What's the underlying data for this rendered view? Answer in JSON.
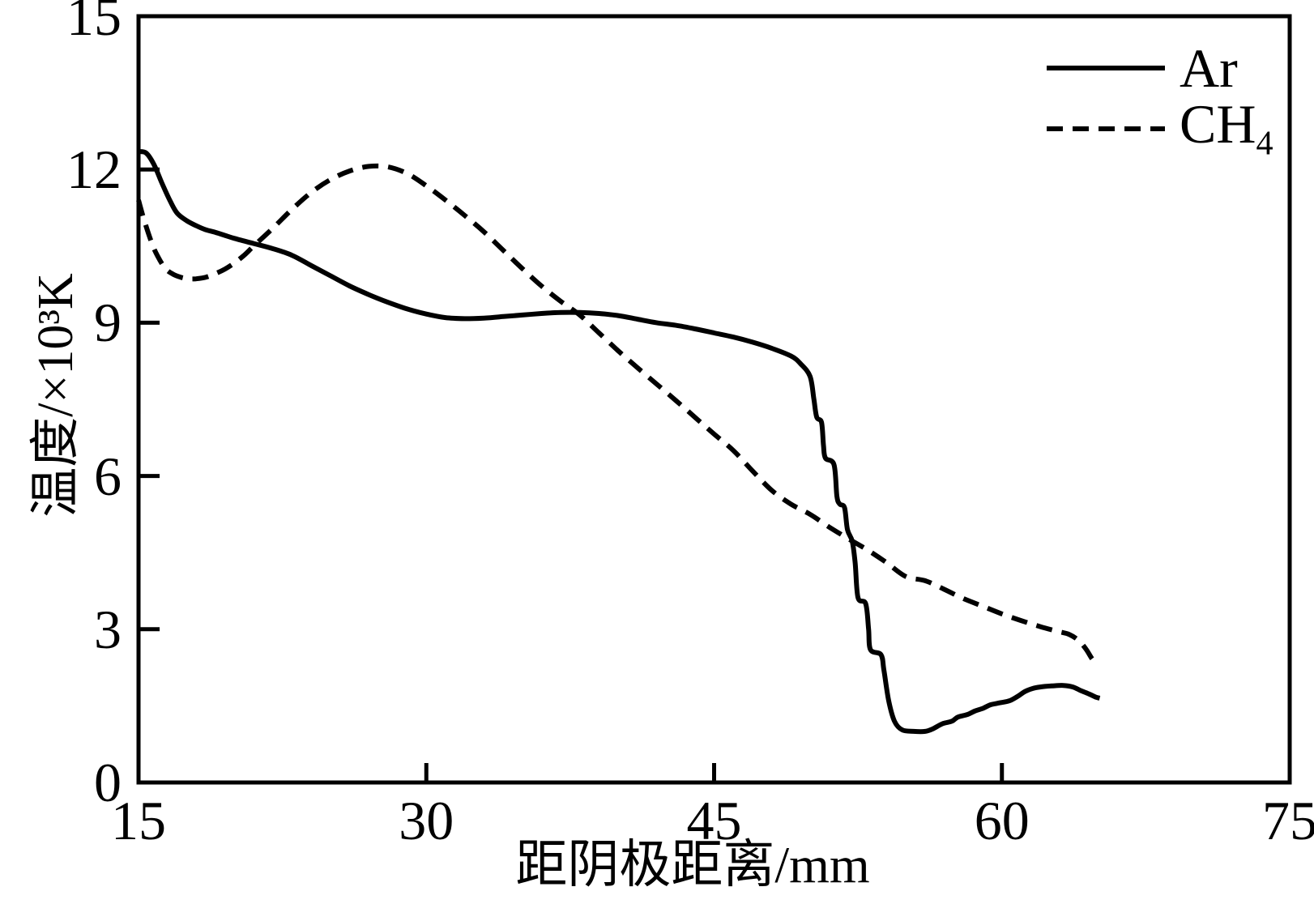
{
  "figure": {
    "background": "#ffffff",
    "line_color": "#000000"
  },
  "chart_data": {
    "type": "line",
    "title": "",
    "xlabel": "距阴极距离/mm",
    "ylabel": "温度/×10³K",
    "xlim": [
      15,
      75
    ],
    "ylim": [
      0,
      15
    ],
    "xticks": [
      15,
      30,
      45,
      60,
      75
    ],
    "yticks": [
      0,
      3,
      6,
      9,
      12,
      15
    ],
    "grid": false,
    "legend_position": "top-right",
    "series": [
      {
        "name": "Ar",
        "style": "solid",
        "color": "#000000",
        "points": [
          [
            15,
            12.35
          ],
          [
            15.4,
            12.32
          ],
          [
            15.8,
            12.1
          ],
          [
            16.2,
            11.75
          ],
          [
            16.6,
            11.42
          ],
          [
            17,
            11.15
          ],
          [
            17.5,
            11.0
          ],
          [
            18,
            10.9
          ],
          [
            18.5,
            10.82
          ],
          [
            19,
            10.77
          ],
          [
            19.5,
            10.71
          ],
          [
            20,
            10.65
          ],
          [
            21,
            10.55
          ],
          [
            22,
            10.45
          ],
          [
            23,
            10.32
          ],
          [
            24,
            10.12
          ],
          [
            25,
            9.92
          ],
          [
            26,
            9.72
          ],
          [
            27,
            9.55
          ],
          [
            28,
            9.4
          ],
          [
            29,
            9.27
          ],
          [
            30,
            9.17
          ],
          [
            31,
            9.1
          ],
          [
            32,
            9.08
          ],
          [
            33,
            9.09
          ],
          [
            34,
            9.12
          ],
          [
            35,
            9.15
          ],
          [
            36,
            9.18
          ],
          [
            37,
            9.2
          ],
          [
            38,
            9.2
          ],
          [
            39,
            9.18
          ],
          [
            40,
            9.14
          ],
          [
            41,
            9.07
          ],
          [
            42,
            9.0
          ],
          [
            43,
            8.95
          ],
          [
            44,
            8.88
          ],
          [
            45,
            8.8
          ],
          [
            46,
            8.72
          ],
          [
            47,
            8.62
          ],
          [
            48,
            8.5
          ],
          [
            49,
            8.35
          ],
          [
            49.5,
            8.2
          ],
          [
            50,
            7.95
          ],
          [
            50.2,
            7.5
          ],
          [
            50.35,
            7.15
          ],
          [
            50.6,
            7.05
          ],
          [
            50.7,
            6.6
          ],
          [
            50.8,
            6.35
          ],
          [
            51.25,
            6.22
          ],
          [
            51.4,
            5.6
          ],
          [
            51.55,
            5.45
          ],
          [
            51.8,
            5.38
          ],
          [
            51.95,
            4.95
          ],
          [
            52.2,
            4.72
          ],
          [
            52.35,
            4.3
          ],
          [
            52.5,
            3.62
          ],
          [
            52.9,
            3.5
          ],
          [
            53.05,
            3.0
          ],
          [
            53.15,
            2.6
          ],
          [
            53.7,
            2.5
          ],
          [
            53.85,
            2.2
          ],
          [
            54.1,
            1.6
          ],
          [
            54.4,
            1.2
          ],
          [
            54.8,
            1.03
          ],
          [
            55.4,
            1.0
          ],
          [
            56,
            1.0
          ],
          [
            56.4,
            1.05
          ],
          [
            56.9,
            1.15
          ],
          [
            57.4,
            1.2
          ],
          [
            57.7,
            1.28
          ],
          [
            58.2,
            1.33
          ],
          [
            58.6,
            1.4
          ],
          [
            59,
            1.45
          ],
          [
            59.4,
            1.52
          ],
          [
            59.9,
            1.56
          ],
          [
            60.4,
            1.6
          ],
          [
            60.8,
            1.68
          ],
          [
            61.2,
            1.78
          ],
          [
            61.6,
            1.84
          ],
          [
            62,
            1.87
          ],
          [
            62.6,
            1.89
          ],
          [
            63.2,
            1.9
          ],
          [
            63.7,
            1.87
          ],
          [
            64.1,
            1.8
          ],
          [
            64.5,
            1.74
          ],
          [
            64.9,
            1.67
          ],
          [
            65.1,
            1.65
          ]
        ]
      },
      {
        "name": "CH4",
        "style": "dashed",
        "color": "#000000",
        "points": [
          [
            15,
            11.4
          ],
          [
            15.3,
            11.0
          ],
          [
            15.7,
            10.55
          ],
          [
            16,
            10.3
          ],
          [
            16.4,
            10.06
          ],
          [
            16.8,
            9.95
          ],
          [
            17.2,
            9.89
          ],
          [
            17.6,
            9.86
          ],
          [
            18,
            9.86
          ],
          [
            18.5,
            9.89
          ],
          [
            19,
            9.96
          ],
          [
            19.5,
            10.05
          ],
          [
            20,
            10.17
          ],
          [
            20.5,
            10.32
          ],
          [
            21,
            10.5
          ],
          [
            22,
            10.85
          ],
          [
            23,
            11.22
          ],
          [
            24,
            11.55
          ],
          [
            25,
            11.8
          ],
          [
            26,
            11.97
          ],
          [
            27,
            12.06
          ],
          [
            28,
            12.05
          ],
          [
            29,
            11.92
          ],
          [
            30,
            11.68
          ],
          [
            31,
            11.4
          ],
          [
            32,
            11.1
          ],
          [
            33,
            10.78
          ],
          [
            34,
            10.42
          ],
          [
            35,
            10.06
          ],
          [
            36,
            9.72
          ],
          [
            37,
            9.42
          ],
          [
            38,
            9.15
          ],
          [
            39,
            8.8
          ],
          [
            40,
            8.45
          ],
          [
            41,
            8.12
          ],
          [
            42,
            7.8
          ],
          [
            43,
            7.48
          ],
          [
            44,
            7.15
          ],
          [
            45,
            6.82
          ],
          [
            46,
            6.5
          ],
          [
            47,
            6.1
          ],
          [
            48,
            5.72
          ],
          [
            49,
            5.45
          ],
          [
            50,
            5.25
          ],
          [
            51,
            5.0
          ],
          [
            52,
            4.77
          ],
          [
            53,
            4.55
          ],
          [
            54,
            4.3
          ],
          [
            55,
            4.03
          ],
          [
            56,
            3.95
          ],
          [
            57,
            3.78
          ],
          [
            58,
            3.6
          ],
          [
            59,
            3.45
          ],
          [
            60,
            3.3
          ],
          [
            61,
            3.17
          ],
          [
            62,
            3.05
          ],
          [
            63,
            2.95
          ],
          [
            63.5,
            2.9
          ],
          [
            64,
            2.78
          ],
          [
            64.4,
            2.6
          ],
          [
            64.7,
            2.42
          ],
          [
            65,
            2.3
          ]
        ]
      }
    ]
  },
  "legend": {
    "items": [
      {
        "label": "Ar",
        "line": "solid"
      },
      {
        "label_main": "CH",
        "label_sub": "4",
        "line": "dashed"
      }
    ]
  }
}
